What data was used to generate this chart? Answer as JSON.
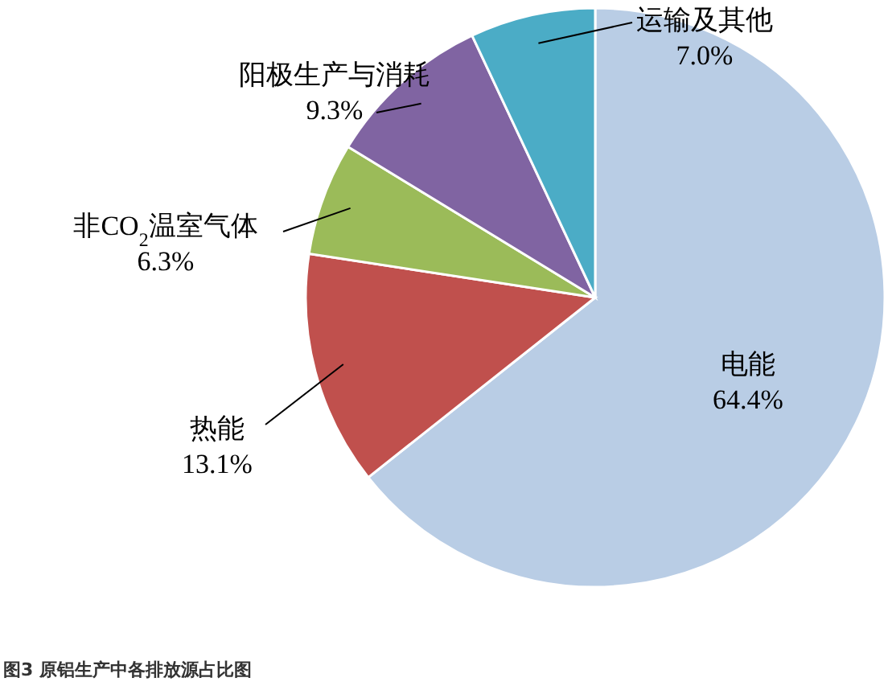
{
  "chart_data": {
    "type": "pie",
    "title": "图3 原铝生产中各排放源占比图",
    "categories": [
      "电能",
      "热能",
      "非CO$_{2}$温室气体",
      "阳极生产与消耗",
      "运输及其他"
    ],
    "values": [
      64.4,
      13.1,
      6.3,
      9.3,
      7.0
    ],
    "value_labels": [
      "64.4%",
      "13.1%",
      "6.3%",
      "9.3%",
      "7.0%"
    ],
    "colors": [
      "#b9cde5",
      "#c0504d",
      "#9bbb59",
      "#8064a2",
      "#4bacc6"
    ]
  }
}
